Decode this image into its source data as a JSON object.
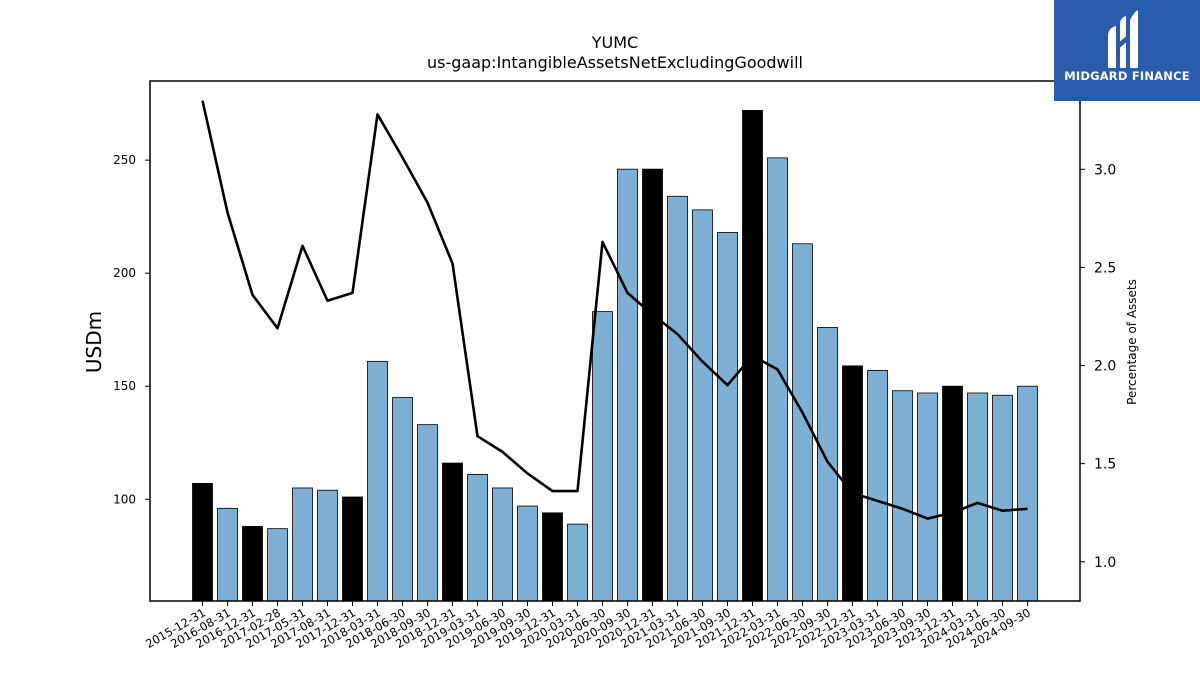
{
  "logo": {
    "text": "MIDGARD FINANCE",
    "icon": "midgard-logo-icon",
    "color": "#2a5cad"
  },
  "chart_data": {
    "type": "bar",
    "title": "YUMC",
    "subtitle": "us-gaap:IntangibleAssetsNetExcludingGoodwill",
    "ylabel": "USDm",
    "ylabel_right": "Percentage of Assets",
    "ylim": [
      55,
      285
    ],
    "yticks": [
      100,
      150,
      200,
      250
    ],
    "ylim_right": [
      0.8,
      3.45
    ],
    "yticks_right": [
      1.0,
      1.5,
      2.0,
      2.5,
      3.0
    ],
    "categories": [
      "2015-12-31",
      "2016-08-31",
      "2016-12-31",
      "2017-02-28",
      "2017-05-31",
      "2017-08-31",
      "2017-12-31",
      "2018-03-31",
      "2018-06-30",
      "2018-09-30",
      "2018-12-31",
      "2019-03-31",
      "2019-06-30",
      "2019-09-30",
      "2019-12-31",
      "2020-03-31",
      "2020-06-30",
      "2020-09-30",
      "2020-12-31",
      "2021-03-31",
      "2021-06-30",
      "2021-09-30",
      "2021-12-31",
      "2022-03-31",
      "2022-06-30",
      "2022-09-30",
      "2022-12-31",
      "2023-03-31",
      "2023-06-30",
      "2023-09-30",
      "2023-12-31",
      "2024-03-31",
      "2024-06-30",
      "2024-09-30"
    ],
    "series": [
      {
        "type": "bar",
        "values": [
          107,
          96,
          88,
          87,
          105,
          104,
          101,
          161,
          145,
          133,
          116,
          111,
          105,
          97,
          94,
          89,
          183,
          246,
          246,
          234,
          228,
          218,
          272,
          251,
          213,
          176,
          159,
          157,
          148,
          147,
          150,
          147,
          146,
          150
        ],
        "annual_highlight": [
          true,
          false,
          true,
          false,
          false,
          false,
          true,
          false,
          false,
          false,
          true,
          false,
          false,
          false,
          true,
          false,
          false,
          false,
          true,
          false,
          false,
          false,
          true,
          false,
          false,
          false,
          true,
          false,
          false,
          false,
          true,
          false,
          false,
          false
        ],
        "color": "#7eb0d5",
        "highlight_color": "#000000"
      },
      {
        "type": "line",
        "axis": "right",
        "values": [
          3.35,
          2.78,
          2.36,
          2.19,
          2.61,
          2.33,
          2.37,
          3.28,
          3.06,
          2.83,
          2.52,
          1.64,
          1.56,
          1.45,
          1.36,
          1.36,
          2.63,
          2.37,
          2.26,
          2.16,
          2.02,
          1.9,
          2.05,
          1.98,
          1.76,
          1.51,
          1.35,
          1.31,
          1.27,
          1.22,
          1.25,
          1.3,
          1.26,
          1.27
        ],
        "color": "#000000"
      }
    ]
  }
}
